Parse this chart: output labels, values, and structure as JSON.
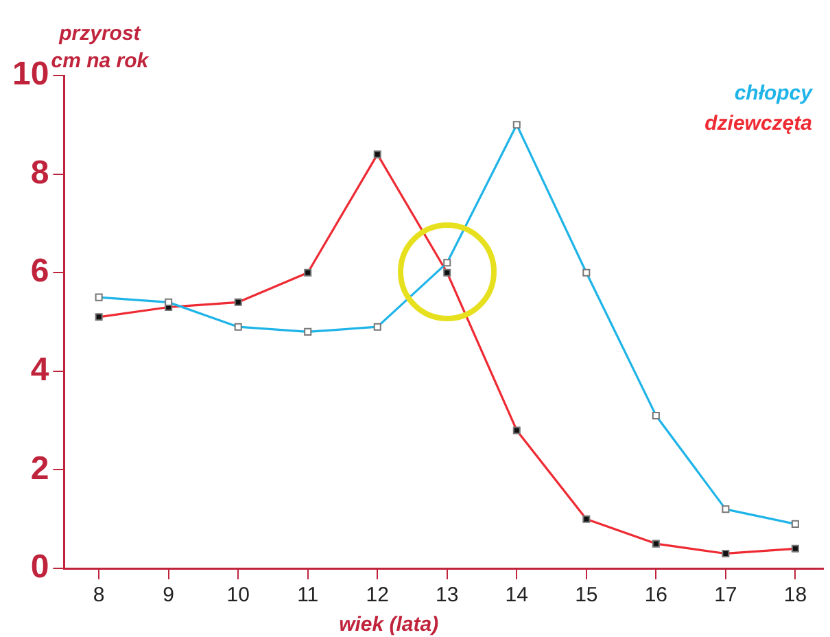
{
  "chart_data": {
    "type": "line",
    "ylabel": "przyrost\ncm na rok",
    "xlabel": "wiek (lata)",
    "x": [
      8,
      9,
      10,
      11,
      12,
      13,
      14,
      15,
      16,
      17,
      18
    ],
    "series": [
      {
        "name": "chłopcy",
        "color": "#1fb4e8",
        "values": [
          5.5,
          5.4,
          4.9,
          4.8,
          4.9,
          6.2,
          9.0,
          6.0,
          3.1,
          1.2,
          0.9
        ]
      },
      {
        "name": "dziewczęta",
        "color": "#ee2a33",
        "values": [
          5.1,
          5.3,
          5.4,
          6.0,
          8.4,
          6.0,
          2.8,
          1.0,
          0.5,
          0.3,
          0.4
        ]
      }
    ],
    "xlim": [
      7.5,
      18.4
    ],
    "xticks": [
      8,
      9,
      10,
      11,
      12,
      13,
      14,
      15,
      16,
      17,
      18
    ],
    "ylim": [
      0,
      10
    ],
    "yticks": [
      0,
      2,
      4,
      6,
      8,
      10
    ],
    "grid": false,
    "legend": "top right",
    "marker": "square",
    "line_style": "solid"
  }
}
